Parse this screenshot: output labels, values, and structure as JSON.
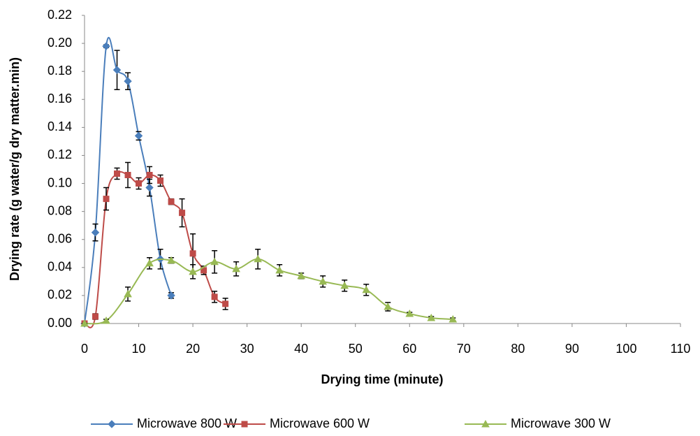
{
  "chart_data": {
    "type": "line",
    "x_label": "Drying time (minute)",
    "y_label": "Drying rate (g water/g dry matter.min)",
    "xlim": [
      0,
      110
    ],
    "xticks": [
      0,
      10,
      20,
      30,
      40,
      50,
      60,
      70,
      80,
      90,
      100,
      110
    ],
    "ylim": [
      0,
      0.22
    ],
    "yticks": [
      {
        "value": 0,
        "label": "0.00"
      },
      {
        "value": 0.02,
        "label": "0.02"
      },
      {
        "value": 0.04,
        "label": "0.04"
      },
      {
        "value": 0.06,
        "label": "0.06"
      },
      {
        "value": 0.08,
        "label": "0.08"
      },
      {
        "value": 0.1,
        "label": "0.10"
      },
      {
        "value": 0.12,
        "label": "0.12"
      },
      {
        "value": 0.14,
        "label": "0.14"
      },
      {
        "value": 0.16,
        "label": "0.16"
      },
      {
        "value": 0.18,
        "label": "0.18"
      },
      {
        "value": 0.2,
        "label": "0.20"
      },
      {
        "value": 0.22,
        "label": "0.22"
      }
    ],
    "grid": false,
    "legend": "bottom",
    "smooth": true,
    "series": [
      {
        "name": "Microwave 800 W",
        "color": "#4a7ebb",
        "marker": "diamond",
        "x": [
          0,
          2,
          4,
          6,
          8,
          10,
          12,
          14,
          16
        ],
        "values": [
          0,
          0.065,
          0.198,
          0.181,
          0.173,
          0.134,
          0.097,
          0.046,
          0.02
        ],
        "errors": [
          0,
          0.006,
          0.001,
          0.014,
          0.006,
          0.003,
          0.006,
          0.007,
          0.002
        ]
      },
      {
        "name": "Microwave 600 W",
        "color": "#be4b48",
        "marker": "square",
        "x": [
          0,
          2,
          4,
          6,
          8,
          10,
          12,
          14,
          16,
          18,
          20,
          22,
          24,
          26
        ],
        "values": [
          0,
          0.005,
          0.089,
          0.107,
          0.106,
          0.1,
          0.106,
          0.102,
          0.087,
          0.079,
          0.05,
          0.038,
          0.019,
          0.014
        ],
        "errors": [
          0,
          0.002,
          0.008,
          0.004,
          0.009,
          0.004,
          0.006,
          0.004,
          0.002,
          0.01,
          0.014,
          0.003,
          0.004,
          0.004
        ]
      },
      {
        "name": "Microwave 300 W",
        "color": "#98b954",
        "marker": "triangle",
        "x": [
          0,
          4,
          8,
          12,
          16,
          20,
          24,
          28,
          32,
          36,
          40,
          44,
          48,
          52,
          56,
          60,
          64,
          68
        ],
        "values": [
          0,
          0.002,
          0.021,
          0.043,
          0.045,
          0.037,
          0.044,
          0.039,
          0.046,
          0.038,
          0.034,
          0.03,
          0.027,
          0.024,
          0.012,
          0.007,
          0.004,
          0.003
        ],
        "errors": [
          0,
          0.001,
          0.005,
          0.004,
          0.002,
          0.005,
          0.008,
          0.005,
          0.007,
          0.004,
          0.002,
          0.004,
          0.004,
          0.004,
          0.003,
          0.001,
          0.001,
          0.001
        ]
      }
    ]
  }
}
